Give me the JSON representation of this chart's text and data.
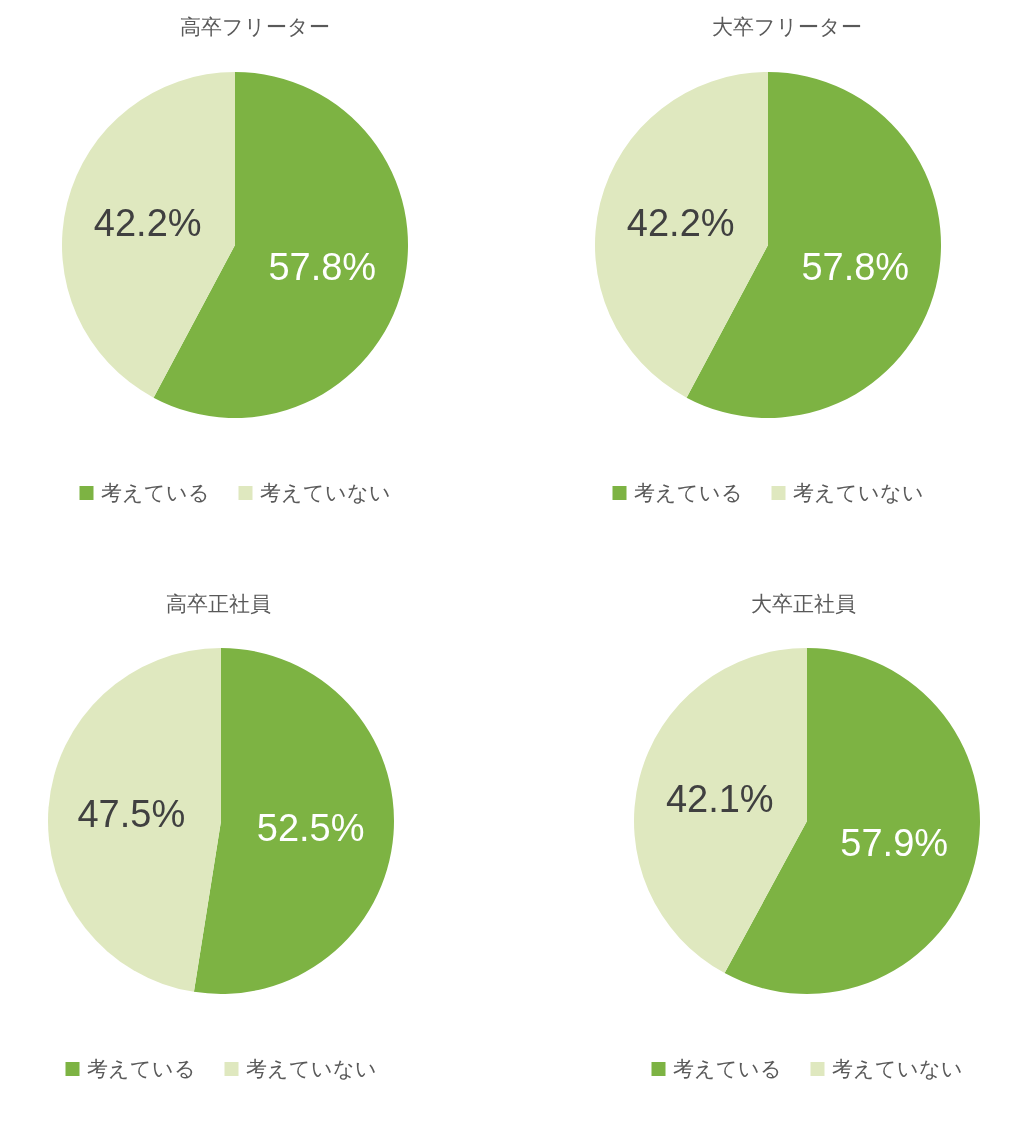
{
  "chart_data": [
    {
      "type": "pie",
      "title": "高卒フリーター",
      "categories": [
        "考えている",
        "考えていない"
      ],
      "values": [
        57.8,
        42.2
      ],
      "colors": [
        "#7db343",
        "#dfe8bf"
      ],
      "value_labels": [
        "57.8%",
        "42.2%"
      ],
      "legend": "bottom"
    },
    {
      "type": "pie",
      "title": "大卒フリーター",
      "categories": [
        "考えている",
        "考えていない"
      ],
      "values": [
        57.8,
        42.2
      ],
      "colors": [
        "#7db343",
        "#dfe8bf"
      ],
      "value_labels": [
        "57.8%",
        "42.2%"
      ],
      "legend": "bottom"
    },
    {
      "type": "pie",
      "title": "高卒正社員",
      "categories": [
        "考えている",
        "考えていない"
      ],
      "values": [
        52.5,
        47.5
      ],
      "colors": [
        "#7db343",
        "#dfe8bf"
      ],
      "value_labels": [
        "52.5%",
        "47.5%"
      ],
      "legend": "bottom"
    },
    {
      "type": "pie",
      "title": "大卒正社員",
      "categories": [
        "考えている",
        "考えていない"
      ],
      "values": [
        57.9,
        42.1
      ],
      "colors": [
        "#7db343",
        "#dfe8bf"
      ],
      "value_labels": [
        "57.9%",
        "42.1%"
      ],
      "legend": "bottom"
    }
  ]
}
